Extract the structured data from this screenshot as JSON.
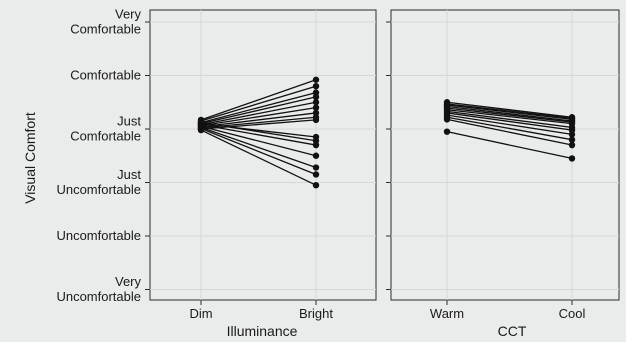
{
  "chart_data": [
    {
      "type": "line",
      "panel": "left",
      "xlabel": "Illuminance",
      "ylabel": "Visual Comfort",
      "categories": [
        "Dim",
        "Bright"
      ],
      "ylim": [
        -3,
        2
      ],
      "y_ticks": [
        {
          "value": 2,
          "label": [
            "Very",
            "Comfortable"
          ]
        },
        {
          "value": 1,
          "label": [
            "Comfortable"
          ]
        },
        {
          "value": 0,
          "label": [
            "Just",
            "Comfortable"
          ]
        },
        {
          "value": -1,
          "label": [
            "Just",
            "Uncomfortable"
          ]
        },
        {
          "value": -2,
          "label": [
            "Uncomfortable"
          ]
        },
        {
          "value": -3,
          "label": [
            "Very",
            "Uncomfortable"
          ]
        }
      ],
      "grid": true,
      "series": [
        {
          "values": [
            0.17,
            0.92
          ]
        },
        {
          "values": [
            0.15,
            0.8
          ]
        },
        {
          "values": [
            0.12,
            0.68
          ]
        },
        {
          "values": [
            0.1,
            0.6
          ]
        },
        {
          "values": [
            0.08,
            0.5
          ]
        },
        {
          "values": [
            0.06,
            0.4
          ]
        },
        {
          "values": [
            0.04,
            0.3
          ]
        },
        {
          "values": [
            0.02,
            0.22
          ]
        },
        {
          "values": [
            0.0,
            0.17
          ]
        },
        {
          "values": [
            0.1,
            -0.15
          ]
        },
        {
          "values": [
            0.08,
            -0.3
          ]
        },
        {
          "values": [
            0.05,
            -0.5
          ]
        },
        {
          "values": [
            0.03,
            -0.72
          ]
        },
        {
          "values": [
            0.01,
            -0.85
          ]
        },
        {
          "values": [
            -0.02,
            -1.05
          ]
        },
        {
          "values": [
            0.12,
            -0.22
          ]
        }
      ]
    },
    {
      "type": "line",
      "panel": "right",
      "xlabel": "CCT",
      "categories": [
        "Warm",
        "Cool"
      ],
      "ylim": [
        -3,
        2
      ],
      "grid": true,
      "series": [
        {
          "values": [
            0.5,
            0.22
          ]
        },
        {
          "values": [
            0.47,
            0.2
          ]
        },
        {
          "values": [
            0.45,
            0.18
          ]
        },
        {
          "values": [
            0.42,
            0.15
          ]
        },
        {
          "values": [
            0.39,
            0.13
          ]
        },
        {
          "values": [
            0.36,
            0.1
          ]
        },
        {
          "values": [
            0.33,
            0.03
          ]
        },
        {
          "values": [
            0.3,
            -0.02
          ]
        },
        {
          "values": [
            0.26,
            -0.1
          ]
        },
        {
          "values": [
            0.22,
            -0.2
          ]
        },
        {
          "values": [
            0.18,
            -0.3
          ]
        },
        {
          "values": [
            -0.05,
            -0.55
          ]
        }
      ]
    }
  ]
}
